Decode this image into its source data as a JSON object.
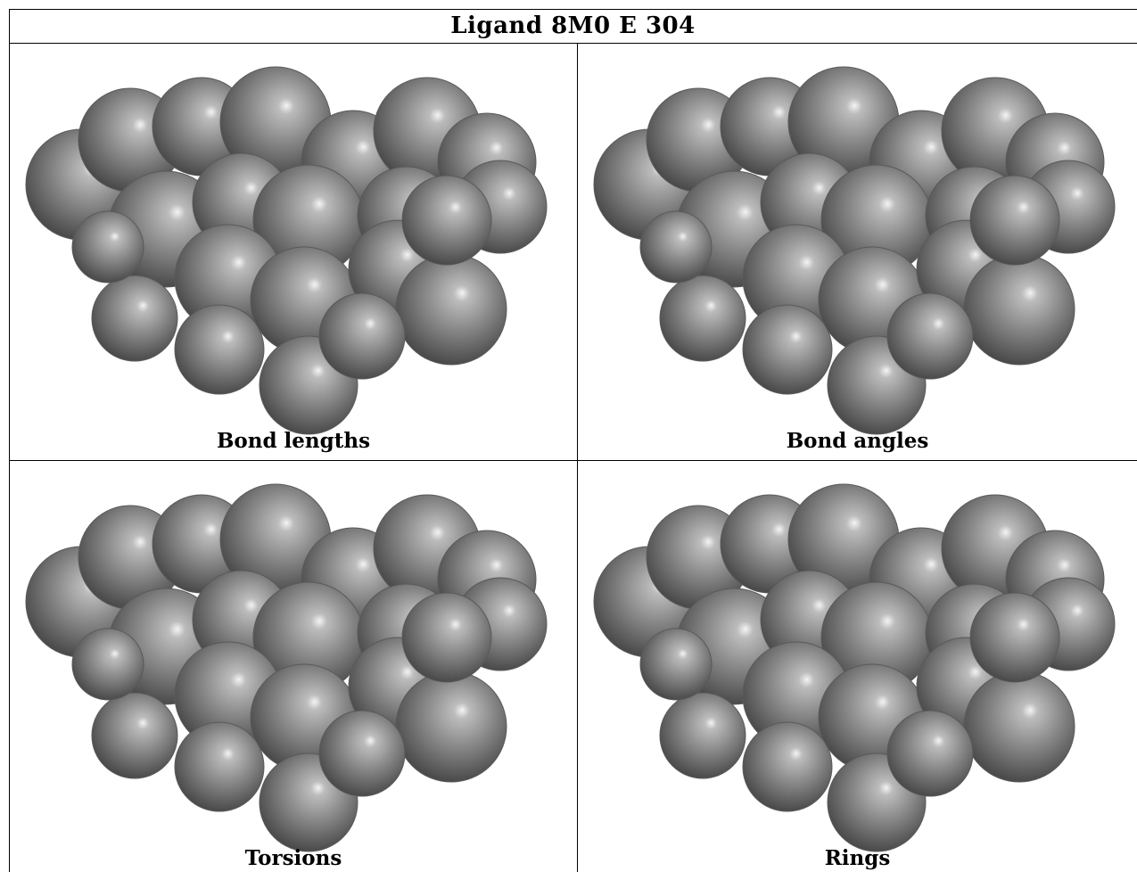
{
  "title": "Ligand 8M0 E 304",
  "panels": [
    {
      "label": "Bond lengths",
      "image": "molecule-surface-render"
    },
    {
      "label": "Bond angles",
      "image": "molecule-surface-render"
    },
    {
      "label": "Torsions",
      "image": "molecule-surface-render"
    },
    {
      "label": "Rings",
      "image": "molecule-surface-render"
    }
  ]
}
